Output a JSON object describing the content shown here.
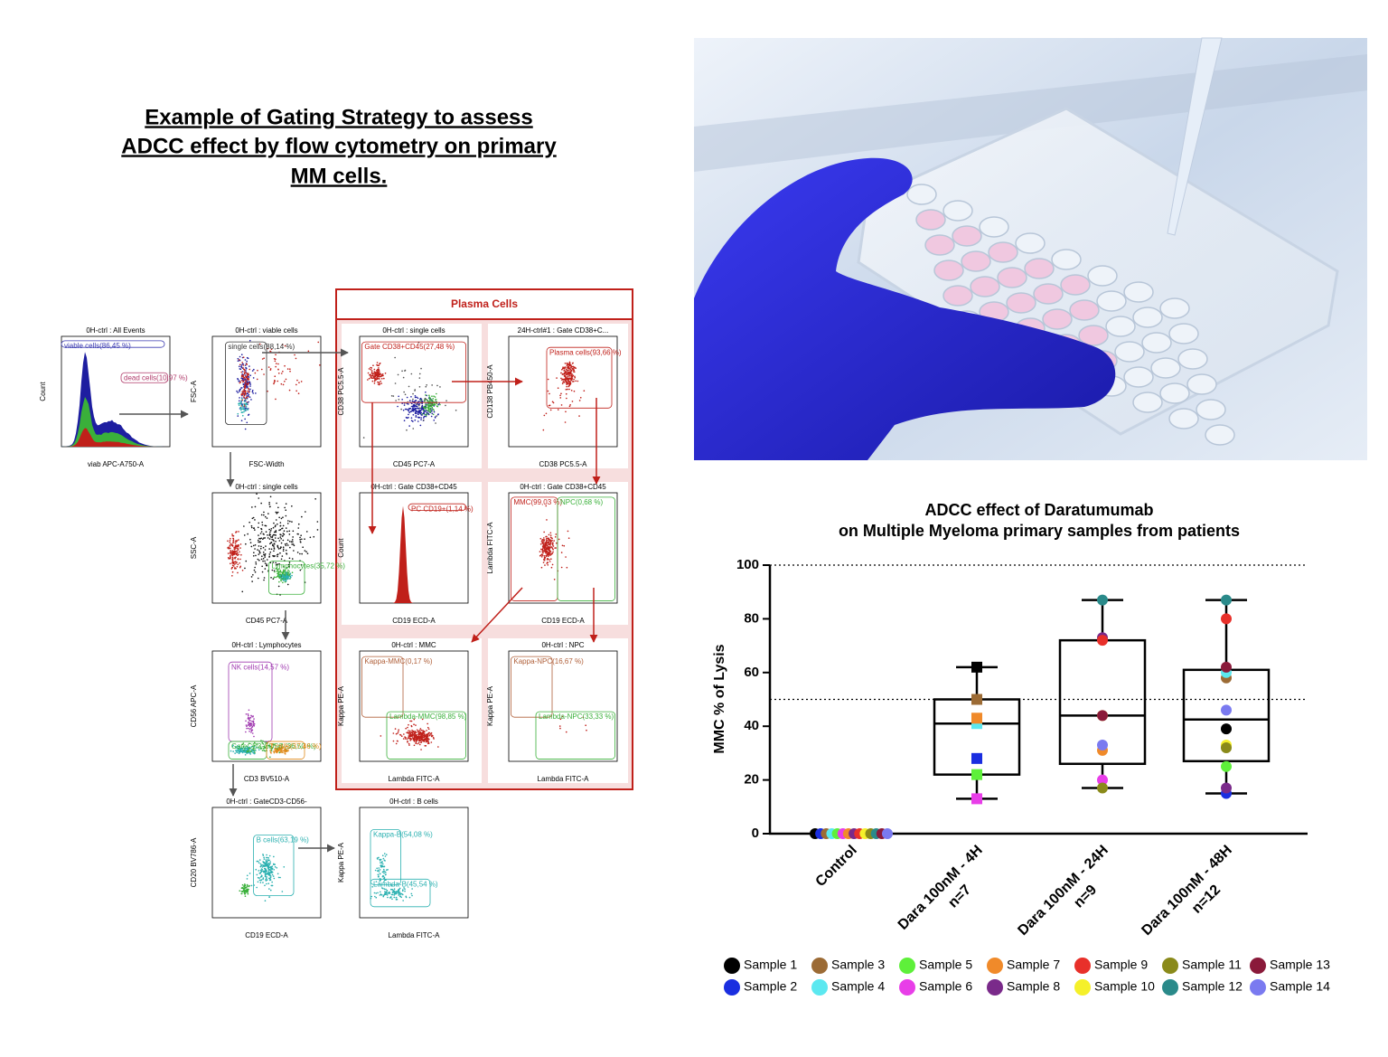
{
  "gating": {
    "title": [
      "Example of Gating Strategy to assess",
      "ADCC effect by flow cytometry on primary",
      "MM cells."
    ],
    "group_label": "Plasma Cells",
    "panels": [
      {
        "title": "0H-ctrl : All Events",
        "x_label": "viab APC-A750-A",
        "y_label": "Count",
        "gates": [
          {
            "label": "viable cells(86,45 %)",
            "color": "#3a3ab0"
          },
          {
            "label": "dead cells(10,97 %)",
            "color": "#b03a6a"
          }
        ]
      },
      {
        "title": "0H-ctrl : viable cells",
        "x_label": "FSC-Width",
        "y_label": "FSC-A",
        "gates": [
          {
            "label": "single cells(88,14 %)",
            "color": "#333333"
          }
        ]
      },
      {
        "title": "0H-ctrl : single cells",
        "x_label": "CD45 PC7-A",
        "y_label": "CD38 PC5.5-A",
        "gates": [
          {
            "label": "Gate CD38+CD45(27,48 %)",
            "color": "#c0201a"
          }
        ]
      },
      {
        "title": "24H-ctrl#1 : Gate CD38+C...",
        "x_label": "CD38 PC5.5-A",
        "y_label": "CD138 PB450-A",
        "gates": [
          {
            "label": "Plasma cells(93,66 %)",
            "color": "#c0201a"
          }
        ]
      },
      {
        "title": "0H-ctrl : single cells",
        "x_label": "CD45 PC7-A",
        "y_label": "SSC-A",
        "gates": [
          {
            "label": "Lymphocytes(35,72 %)",
            "color": "#3ab03a"
          }
        ]
      },
      {
        "title": "0H-ctrl : Gate CD38+CD45",
        "x_label": "CD19 ECD-A",
        "y_label": "Count",
        "gates": [
          {
            "label": "PC CD19+(1,14 %)",
            "color": "#c0201a"
          }
        ]
      },
      {
        "title": "0H-ctrl : Gate CD38+CD45",
        "x_label": "CD19 ECD-A",
        "y_label": "Lambda FITC-A",
        "gates": [
          {
            "label": "MMC(99,03 %)",
            "color": "#c0201a"
          },
          {
            "label": "NPC(0,68 %)",
            "color": "#3ab03a"
          }
        ]
      },
      {
        "title": "0H-ctrl : Lymphocytes",
        "x_label": "CD3 BV510-A",
        "y_label": "CD56 APC-A",
        "gates": [
          {
            "label": "NK cells(14,57 %)",
            "color": "#a03ab0"
          },
          {
            "label": "GateCD3-CD56-(36,50 %)",
            "color": "#3ab03a"
          },
          {
            "label": "T cells(37,46 %)",
            "color": "#e08a1a"
          }
        ]
      },
      {
        "title": "0H-ctrl : MMC",
        "x_label": "Lambda FITC-A",
        "y_label": "Kappa PE-A",
        "gates": [
          {
            "label": "Kappa-MMC(0,17 %)",
            "color": "#b0603a"
          },
          {
            "label": "Lambda-MMC(98,85 %)",
            "color": "#3ab03a"
          }
        ]
      },
      {
        "title": "0H-ctrl : NPC",
        "x_label": "Lambda FITC-A",
        "y_label": "Kappa PE-A",
        "gates": [
          {
            "label": "Kappa-NPC(16,67 %)",
            "color": "#b0603a"
          },
          {
            "label": "Lambda-NPC(33,33 %)",
            "color": "#3ab03a"
          }
        ]
      },
      {
        "title": "0H-ctrl : GateCD3-CD56-",
        "x_label": "CD19 ECD-A",
        "y_label": "CD20 BV786-A",
        "gates": [
          {
            "label": "B cells(63,19 %)",
            "color": "#2ab0b0"
          }
        ]
      },
      {
        "title": "0H-ctrl : B cells",
        "x_label": "Lambda FITC-A",
        "y_label": "Kappa PE-A",
        "gates": [
          {
            "label": "Kappa-B(54,08 %)",
            "color": "#2ab0b0"
          },
          {
            "label": "Lambda-B(45,54 %)",
            "color": "#2ab0b0"
          }
        ]
      }
    ]
  },
  "chart_data": {
    "type": "box",
    "title": [
      "ADCC effect of Daratumumab",
      "on Multiple Myeloma primary samples from patients"
    ],
    "y_label": "MMC % of Lysis",
    "categories": [
      "Control",
      "Dara 100nM - 4H",
      "Dara 100nM - 24H",
      "Dara 100nM - 48H"
    ],
    "category_notes": [
      null,
      "n=7",
      "n=9",
      "n=12"
    ],
    "ylim": [
      0,
      100
    ],
    "yticks": [
      0,
      20,
      40,
      60,
      80,
      100
    ],
    "reference_lines": [
      50,
      100
    ],
    "markers": [
      "circle",
      "square",
      "circle",
      "circle"
    ],
    "legend": "bottom",
    "boxes": [
      null,
      {
        "low": 13,
        "q1": 22,
        "median": 41,
        "q3": 50,
        "high": 62
      },
      {
        "low": 17,
        "q1": 26,
        "median": 44,
        "q3": 72,
        "high": 87
      },
      {
        "low": 15,
        "q1": 27,
        "median": 42.5,
        "q3": 61,
        "high": 87
      }
    ],
    "series": [
      {
        "name": "Sample 1",
        "color": "#000000",
        "values": [
          0,
          62,
          null,
          39
        ]
      },
      {
        "name": "Sample 2",
        "color": "#1a2ee0",
        "values": [
          0,
          28,
          null,
          15
        ]
      },
      {
        "name": "Sample 3",
        "color": "#9c6b35",
        "values": [
          0,
          50,
          null,
          58
        ]
      },
      {
        "name": "Sample 4",
        "color": "#5ce8f0",
        "values": [
          0,
          41,
          null,
          60
        ]
      },
      {
        "name": "Sample 5",
        "color": "#5ef03a",
        "values": [
          0,
          22,
          null,
          25
        ]
      },
      {
        "name": "Sample 6",
        "color": "#e83ee8",
        "values": [
          0,
          13,
          20,
          null
        ]
      },
      {
        "name": "Sample 7",
        "color": "#f08a2a",
        "values": [
          0,
          43,
          31,
          null
        ]
      },
      {
        "name": "Sample 8",
        "color": "#7a2a8a",
        "values": [
          0,
          null,
          73,
          17
        ]
      },
      {
        "name": "Sample 9",
        "color": "#e8302a",
        "values": [
          0,
          null,
          72,
          80
        ]
      },
      {
        "name": "Sample 10",
        "color": "#f5f02a",
        "values": [
          0,
          null,
          44,
          33
        ]
      },
      {
        "name": "Sample 11",
        "color": "#8a8a1a",
        "values": [
          0,
          null,
          17,
          32
        ]
      },
      {
        "name": "Sample 12",
        "color": "#2a8a8a",
        "values": [
          0,
          null,
          87,
          87
        ]
      },
      {
        "name": "Sample 13",
        "color": "#8a1a3a",
        "values": [
          0,
          null,
          44,
          62
        ]
      },
      {
        "name": "Sample 14",
        "color": "#7a7af0",
        "values": [
          0,
          null,
          33,
          46
        ]
      }
    ]
  }
}
